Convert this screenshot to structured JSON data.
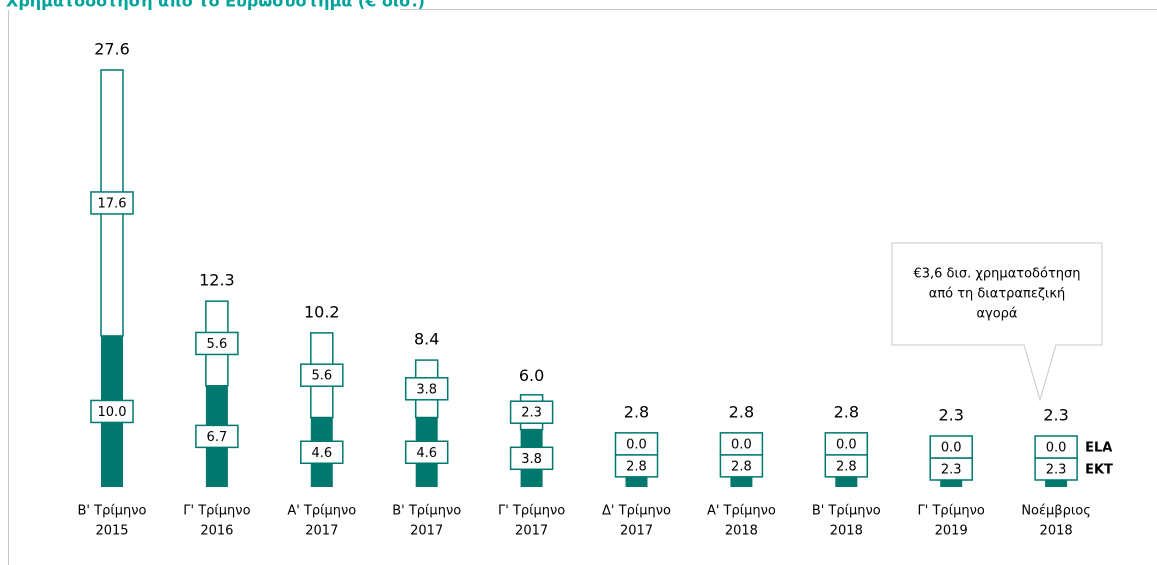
{
  "chart_data": {
    "type": "bar",
    "stacked": true,
    "title": "Χρηματοδότηση από το Ευρωσύστημα (€ δισ.)",
    "categories": [
      [
        "Β' Τρίμηνο",
        "2015"
      ],
      [
        "Γ' Τρίμηνο",
        "2016"
      ],
      [
        "Α' Τρίμηνο",
        "2017"
      ],
      [
        "Β' Τρίμηνο",
        "2017"
      ],
      [
        "Γ' Τρίμηνο",
        "2017"
      ],
      [
        "Δ' Τρίμηνο",
        "2017"
      ],
      [
        "Α' Τρίμηνο",
        "2018"
      ],
      [
        "Β' Τρίμηνο",
        "2018"
      ],
      [
        "Γ' Τρίμηνο",
        "2019"
      ],
      [
        "Νοέμβριος",
        "2018"
      ]
    ],
    "series": [
      {
        "name": "EKT",
        "color": "#00786e",
        "values": [
          10.0,
          6.7,
          4.6,
          4.6,
          3.8,
          2.8,
          2.8,
          2.8,
          2.3,
          2.3
        ],
        "value_labels": [
          "10.0",
          "6.7",
          "4.6",
          "4.6",
          "3.8",
          "2.8",
          "2.8",
          "2.8",
          "2.3",
          "2.3"
        ]
      },
      {
        "name": "ELA",
        "color": "#ffffff",
        "values": [
          17.6,
          5.6,
          5.6,
          3.8,
          2.3,
          0.0,
          0.0,
          0.0,
          0.0,
          0.0
        ],
        "value_labels": [
          "17.6",
          "5.6",
          "5.6",
          "3.8",
          "2.3",
          "0.0",
          "0.0",
          "0.0",
          "0.0",
          "0.0"
        ]
      }
    ],
    "totals": [
      27.6,
      12.3,
      10.2,
      8.4,
      6.0,
      2.8,
      2.8,
      2.8,
      2.3,
      2.3
    ],
    "total_labels": [
      "27.6",
      "12.3",
      "10.2",
      "8.4",
      "6.0",
      "2.8",
      "2.8",
      "2.8",
      "2.3",
      "2.3"
    ],
    "annotation": [
      "€3,6 δισ. χρηματοδότηση",
      "από τη διατραπεζική",
      "αγορά"
    ]
  }
}
